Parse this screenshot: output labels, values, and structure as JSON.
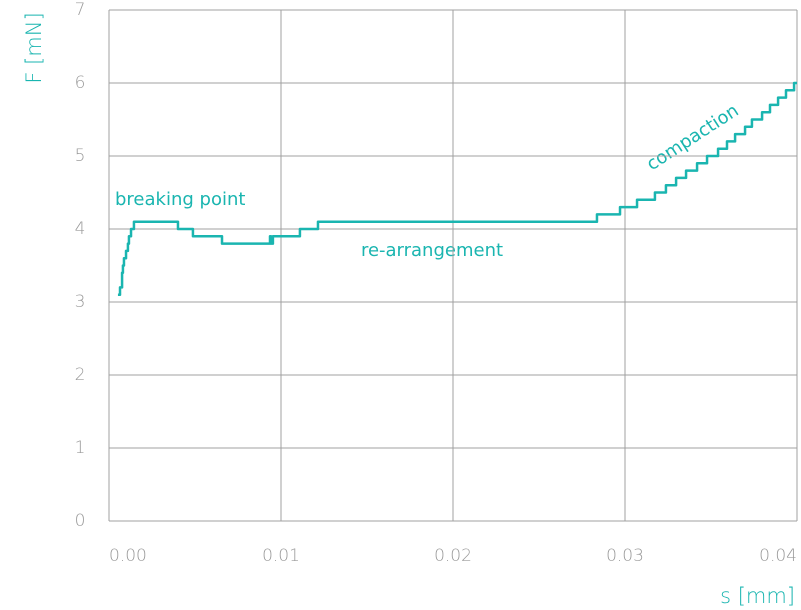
{
  "chart_data": {
    "type": "line",
    "step": "post",
    "xlabel": "s [mm]",
    "ylabel": "F [mN]",
    "annotations": [
      "breaking point",
      "re-arrangement",
      "compaction"
    ],
    "xlim": [
      0,
      0.04
    ],
    "xticks": [
      {
        "value": 0,
        "label": "0.00"
      },
      0.01,
      0.02,
      0.03,
      0.04
    ],
    "ylim": [
      0,
      7
    ],
    "yticks": [
      0,
      1,
      2,
      3,
      4,
      5,
      6,
      7
    ],
    "grid": true,
    "x": [
      0.00052,
      0.00064,
      0.00076,
      0.00081,
      0.00087,
      0.00099,
      0.0011,
      0.00116,
      0.00128,
      0.00145,
      0.00401,
      0.00488,
      0.00657,
      0.00936,
      0.00942,
      0.00953,
      0.0111,
      0.01215,
      0.02837,
      0.02971,
      0.0307,
      0.03174,
      0.03238,
      0.03297,
      0.03355,
      0.03419,
      0.03477,
      0.03541,
      0.03593,
      0.0364,
      0.03698,
      0.03738,
      0.03797,
      0.03843,
      0.0389,
      0.03936,
      0.03983,
      0.04
    ],
    "series": [
      {
        "color": "#1ab5b0",
        "values": [
          3.1,
          3.2,
          3.4,
          3.5,
          3.6,
          3.7,
          3.8,
          3.9,
          4.0,
          4.1,
          4.0,
          3.9,
          3.8,
          3.9,
          3.8,
          3.9,
          4.0,
          4.1,
          4.2,
          4.3,
          4.4,
          4.5,
          4.6,
          4.7,
          4.8,
          4.9,
          5.0,
          5.1,
          5.2,
          5.3,
          5.4,
          5.5,
          5.6,
          5.7,
          5.8,
          5.9,
          6.0,
          6.0
        ]
      }
    ]
  }
}
